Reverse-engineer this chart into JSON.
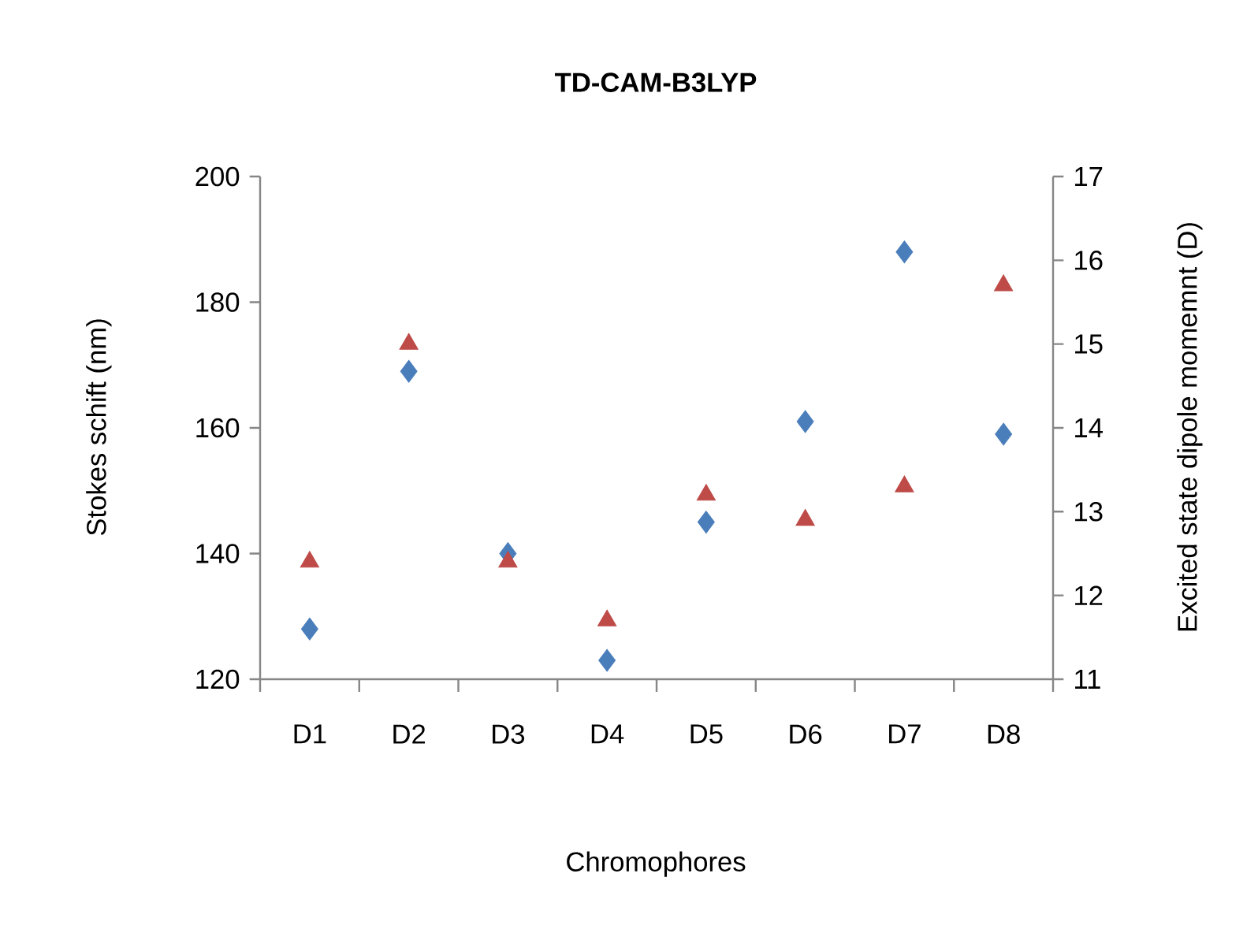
{
  "chart_data": {
    "type": "scatter",
    "title": "TD-CAM-B3LYP",
    "xlabel": "Chromophores",
    "ylabel": "Stokes schift (nm)",
    "y2label": "Excited state dipole momemnt (D)",
    "categories": [
      "D1",
      "D2",
      "D3",
      "D4",
      "D5",
      "D6",
      "D7",
      "D8"
    ],
    "series": [
      {
        "color": "#4a7ebb",
        "marker": "diamond",
        "values": [
          128,
          169,
          140,
          123,
          145,
          161,
          188,
          159
        ]
      },
      {
        "color": "#be4b48",
        "marker": "triangle",
        "axis": "y2",
        "values": [
          12.4,
          15.0,
          12.4,
          11.7,
          13.2,
          12.9,
          13.3,
          15.7
        ]
      }
    ],
    "ylim": [
      120,
      200
    ],
    "yticks": [
      120,
      140,
      160,
      180,
      200
    ],
    "y2lim": [
      11,
      17
    ],
    "y2ticks": [
      11,
      12,
      13,
      14,
      15,
      16,
      17
    ]
  }
}
